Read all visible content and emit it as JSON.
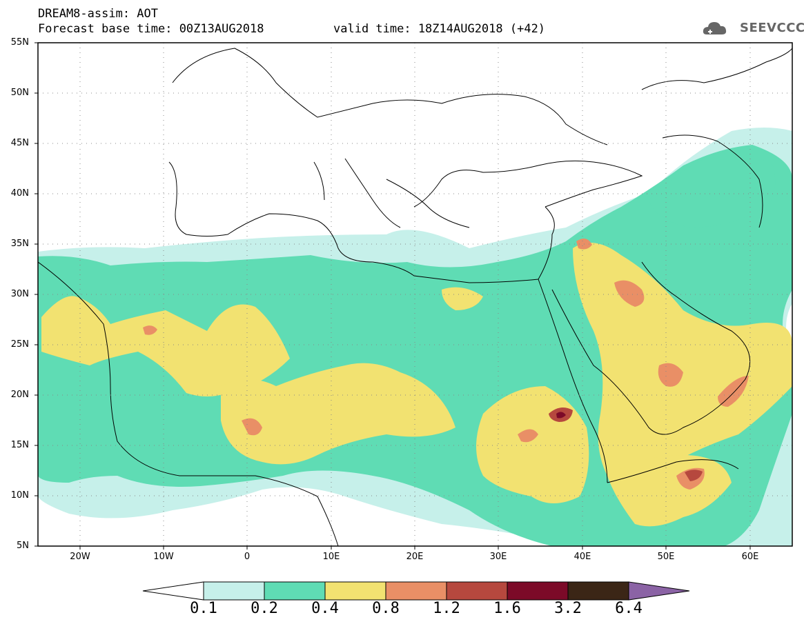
{
  "header": {
    "title": "DREAM8-assim: AOT",
    "base_time": "Forecast base time: 00Z13AUG2018",
    "valid_time": "valid time: 18Z14AUG2018 (+42)",
    "logo_text": "SEEVCCC"
  },
  "map": {
    "projection": "cylindrical equidistant",
    "lon_range": [
      -25,
      65
    ],
    "lat_range": [
      5,
      55
    ],
    "lat_ticks": [
      "55N",
      "50N",
      "45N",
      "40N",
      "35N",
      "30N",
      "25N",
      "20N",
      "15N",
      "10N",
      "5N"
    ],
    "lon_ticks": [
      "20W",
      "10W",
      "0",
      "10E",
      "20E",
      "30E",
      "40E",
      "50E",
      "60E"
    ],
    "grid": "dotted"
  },
  "colorbar": {
    "labels": [
      "0.1",
      "0.2",
      "0.4",
      "0.8",
      "1.2",
      "1.6",
      "3.2",
      "6.4"
    ],
    "colors": [
      "#c6f0ea",
      "#5fdcb4",
      "#f2e271",
      "#e98f66",
      "#b6483e",
      "#7c0a28",
      "#3b2616",
      "#8b63a5"
    ],
    "extend": "both"
  },
  "field_colors": {
    "c1": "#c6f0ea",
    "c2": "#5fdcb4",
    "c3": "#f2e271",
    "c4": "#e98f66",
    "c5": "#b6483e",
    "c6": "#7c0a28"
  }
}
